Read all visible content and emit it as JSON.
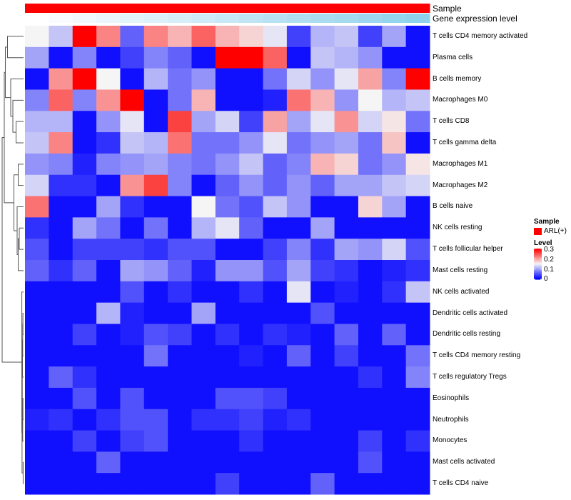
{
  "chart_data": {
    "type": "heatmap",
    "annotations": [
      {
        "name": "Sample",
        "color": "#ff0000"
      },
      {
        "name": "Gene expression level",
        "low_color": "#ffffff",
        "high_color": "#87ceeb",
        "values": [
          0,
          0.05,
          0.1,
          0.15,
          0.2,
          0.25,
          0.3,
          0.35,
          0.4,
          0.45,
          0.5,
          0.55,
          0.6,
          0.65,
          0.7,
          0.75,
          0.8,
          0.85
        ]
      }
    ],
    "rows": [
      "T cells CD4 memory activated",
      "Plasma cells",
      "B cells memory",
      "Macrophages M0",
      "T cells CD8",
      "T cells gamma delta",
      "Macrophages M1",
      "Macrophages M2",
      "B cells naive",
      "NK cells resting",
      "T cells follicular helper",
      "Mast cells resting",
      "NK cells activated",
      "Dendritic cells activated",
      "Dendritic cells resting",
      "T cells CD4 memory resting",
      "T cells regulatory  Tregs",
      "Eosinophils",
      "Neutrophils",
      "Monocytes",
      "Mast cells activated",
      "T cells CD4 naive"
    ],
    "values": [
      [
        0.15,
        0.12,
        0.3,
        0.22,
        0.06,
        0.22,
        0.19,
        0.24,
        0.19,
        0.17,
        0.14,
        0.04,
        0.11,
        0.12,
        0.04,
        0.1,
        0.01
      ],
      [
        0.1,
        0.01,
        0.08,
        0.01,
        0.04,
        0.08,
        0.06,
        0.01,
        0.3,
        0.3,
        0.24,
        0.01,
        0.12,
        0.11,
        0.09,
        0.01,
        0.01
      ],
      [
        0.01,
        0.21,
        0.3,
        0.15,
        0.01,
        0.11,
        0.07,
        0.09,
        0.01,
        0.01,
        0.07,
        0.13,
        0.09,
        0.14,
        0.2,
        0.08,
        0.3
      ],
      [
        0.08,
        0.24,
        0.08,
        0.21,
        0.3,
        0.01,
        0.07,
        0.19,
        0.01,
        0.01,
        0.02,
        0.23,
        0.19,
        0.09,
        0.15,
        0.11,
        0.12
      ],
      [
        0.11,
        0.11,
        0.01,
        0.09,
        0.14,
        0.01,
        0.26,
        0.1,
        0.13,
        0.04,
        0.2,
        0.1,
        0.14,
        0.21,
        0.13,
        0.16,
        0.07
      ],
      [
        0.12,
        0.22,
        0.01,
        0.03,
        0.12,
        0.11,
        0.23,
        0.07,
        0.07,
        0.09,
        0.14,
        0.07,
        0.09,
        0.1,
        0.07,
        0.18,
        0.01
      ],
      [
        0.09,
        0.08,
        0.02,
        0.08,
        0.09,
        0.1,
        0.08,
        0.07,
        0.09,
        0.12,
        0.06,
        0.08,
        0.19,
        0.17,
        0.07,
        0.09,
        0.16
      ],
      [
        0.13,
        0.03,
        0.03,
        0.01,
        0.21,
        0.26,
        0.08,
        0.01,
        0.06,
        0.09,
        0.06,
        0.09,
        0.06,
        0.1,
        0.1,
        0.12,
        0.13
      ],
      [
        0.23,
        0.01,
        0.01,
        0.1,
        0.03,
        0.01,
        0.01,
        0.15,
        0.07,
        0.05,
        0.12,
        0.09,
        0.01,
        0.01,
        0.17,
        0.1,
        0.01
      ],
      [
        0.03,
        0.01,
        0.1,
        0.07,
        0.01,
        0.07,
        0.01,
        0.11,
        0.14,
        0.06,
        0.01,
        0.01,
        0.1,
        0.01,
        0.01,
        0.01,
        0.01
      ],
      [
        0.05,
        0.01,
        0.04,
        0.04,
        0.04,
        0.03,
        0.05,
        0.05,
        0.01,
        0.01,
        0.04,
        0.08,
        0.03,
        0.1,
        0.09,
        0.13,
        0.05
      ],
      [
        0.06,
        0.03,
        0.06,
        0.01,
        0.1,
        0.09,
        0.06,
        0.02,
        0.09,
        0.09,
        0.05,
        0.1,
        0.04,
        0.03,
        0.01,
        0.02,
        0.03
      ],
      [
        0.01,
        0.01,
        0.01,
        0.01,
        0.05,
        0.01,
        0.03,
        0.01,
        0.01,
        0.03,
        0.01,
        0.14,
        0.01,
        0.02,
        0.01,
        0.03,
        0.12
      ],
      [
        0.01,
        0.01,
        0.01,
        0.11,
        0.02,
        0.01,
        0.01,
        0.1,
        0.01,
        0.01,
        0.01,
        0.01,
        0.05,
        0.01,
        0.01,
        0.01,
        0.01
      ],
      [
        0.01,
        0.01,
        0.04,
        0.01,
        0.02,
        0.05,
        0.04,
        0.01,
        0.03,
        0.01,
        0.03,
        0.02,
        0.01,
        0.06,
        0.01,
        0.06,
        0.01
      ],
      [
        0.01,
        0.01,
        0.01,
        0.01,
        0.01,
        0.07,
        0.01,
        0.01,
        0.01,
        0.02,
        0.01,
        0.06,
        0.01,
        0.04,
        0.01,
        0.01,
        0.07
      ],
      [
        0.01,
        0.06,
        0.03,
        0.01,
        0.01,
        0.01,
        0.01,
        0.01,
        0.01,
        0.01,
        0.01,
        0.01,
        0.01,
        0.01,
        0.03,
        0.01,
        0.08
      ],
      [
        0.01,
        0.01,
        0.05,
        0.01,
        0.05,
        0.01,
        0.01,
        0.01,
        0.05,
        0.05,
        0.04,
        0.01,
        0.01,
        0.01,
        0.01,
        0.01,
        0.01
      ],
      [
        0.02,
        0.03,
        0.01,
        0.03,
        0.05,
        0.05,
        0.01,
        0.03,
        0.03,
        0.04,
        0.02,
        0.03,
        0.01,
        0.01,
        0.01,
        0.01,
        0.01
      ],
      [
        0.01,
        0.01,
        0.04,
        0.01,
        0.04,
        0.05,
        0.01,
        0.01,
        0.01,
        0.03,
        0.01,
        0.01,
        0.01,
        0.01,
        0.04,
        0.01,
        0.03
      ],
      [
        0.01,
        0.01,
        0.01,
        0.06,
        0.01,
        0.01,
        0.01,
        0.01,
        0.01,
        0.01,
        0.01,
        0.01,
        0.01,
        0.01,
        0.05,
        0.01,
        0.01
      ],
      [
        0.01,
        0.01,
        0.01,
        0.01,
        0.01,
        0.01,
        0.01,
        0.01,
        0.04,
        0.01,
        0.01,
        0.01,
        0.06,
        0.01,
        0.01,
        0.01,
        0.01
      ]
    ],
    "color_scale": {
      "min": 0,
      "mid": 0.15,
      "max": 0.3,
      "low_color": "#0000ff",
      "mid_color": "#f5f5f5",
      "high_color": "#ff0000"
    },
    "legend": {
      "sample_title": "Sample",
      "sample_entry": "ARL(+)",
      "sample_color": "#ff0000",
      "level_title": "Level",
      "ticks": [
        "0.3",
        "0.2",
        "0.1",
        "0"
      ],
      "tick_values": [
        0.3,
        0.2,
        0.1,
        0
      ],
      "placement": "right"
    }
  }
}
